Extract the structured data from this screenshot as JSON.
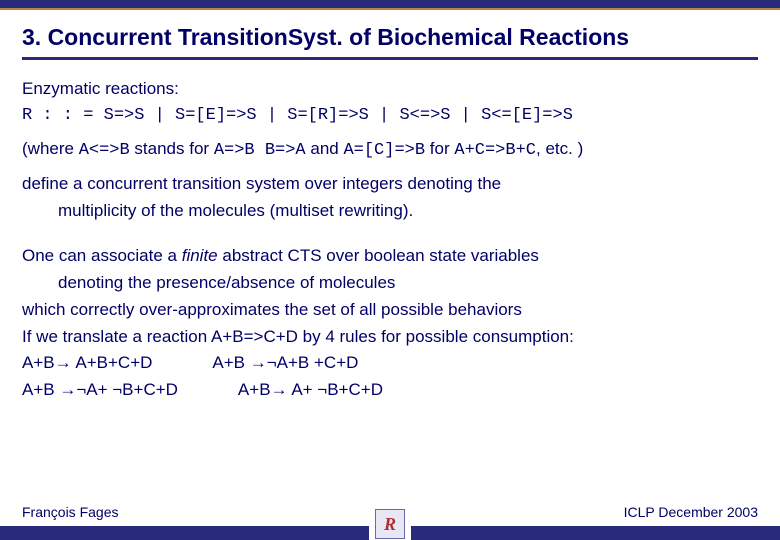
{
  "colors": {
    "text": "#000066",
    "bar": "#2a2a7a",
    "gold": "#b08840",
    "bg": "#ffffff"
  },
  "title": "3. Concurrent TransitionSyst. of Biochemical Reactions",
  "p1": "Enzymatic reactions:",
  "grammar": "R : : = S=>S | S=[E]=>S | S=[R]=>S | S<=>S | S<=[E]=>S",
  "where": {
    "t1": "(where ",
    "c1": "A<=>B",
    "t2": " stands for ",
    "c2": "A=>B B=>A",
    "t3": " and ",
    "c3": "A=[C]=>B",
    "t4": " for ",
    "c4": "A+C=>B+C",
    "t5": ", etc. )"
  },
  "p2a": "define a concurrent transition system over integers denoting the",
  "p2b": "multiplicity of the molecules (multiset rewriting).",
  "p3a_pre": "One can associate a ",
  "p3a_it": "finite",
  "p3a_post": " abstract CTS over boolean state variables",
  "p3b": "denoting the presence/absence of molecules",
  "p4": "which correctly over-approximates the set of all possible behaviors",
  "p5": "If we translate a reaction A+B=>C+D by 4 rules for possible consumption:",
  "rules": {
    "r1": "A+B→ A+B+C+D",
    "r2": "A+B →¬A+B +C+D",
    "r3": "A+B →¬A+ ¬B+C+D",
    "r4": "A+B→ A+ ¬B+C+D"
  },
  "footer": {
    "author": "François Fages",
    "venue": "ICLP December 2003",
    "logo": "R"
  }
}
